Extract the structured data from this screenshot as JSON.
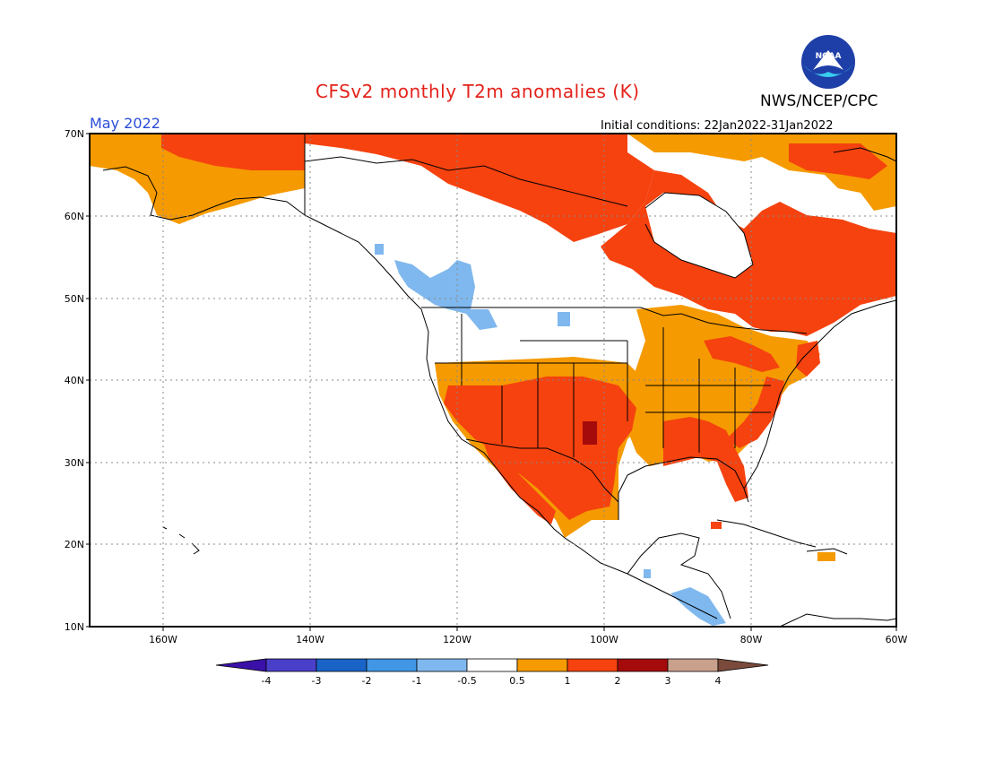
{
  "header": {
    "title": "CFSv2 monthly T2m anomalies (K)",
    "agency": "NWS/NCEP/CPC",
    "logo_text": "NOAA",
    "month": "May 2022",
    "initial_conditions": "Initial conditions: 22Jan2022-31Jan2022"
  },
  "map": {
    "region": "North America",
    "projection": "cylindrical equidistant",
    "lon_range": [
      -172,
      -60
    ],
    "lat_range": [
      10,
      70
    ],
    "lat_labels": [
      "70N",
      "60N",
      "50N",
      "40N",
      "30N",
      "20N",
      "10N"
    ],
    "lon_labels": [
      "160W",
      "140W",
      "120W",
      "100W",
      "80W",
      "60W"
    ],
    "grid": "dotted",
    "anomaly_regions": [
      {
        "area": "northern Alaska / Arctic coast",
        "category": "+0.5 to +1",
        "color": "#f59a00"
      },
      {
        "area": "northern Canada / Arctic",
        "category": "+1 to +2",
        "color": "#f5420f"
      },
      {
        "area": "Quebec / Labrador / eastern Canada",
        "category": "+1 to +2",
        "color": "#f5420f"
      },
      {
        "area": "US Southwest / southern Plains / Mexico",
        "category": "+1 to +2",
        "color": "#f5420f"
      },
      {
        "area": "Texas panhandle / Oklahoma",
        "category": "+2 to +3",
        "color": "#a50b0b"
      },
      {
        "area": "eastern US",
        "category": "+0.5 to +1",
        "color": "#f59a00"
      },
      {
        "area": "Florida / Gulf coast",
        "category": "+1 to +2",
        "color": "#f5420f"
      },
      {
        "area": "British Columbia / Pacific Northwest",
        "category": "-0.5 to -1",
        "color": "#7fb8ee"
      },
      {
        "area": "Central America",
        "category": "-0.5 to -1",
        "color": "#7fb8ee"
      }
    ]
  },
  "colorbar": {
    "ticks": [
      "-4",
      "-3",
      "-2",
      "-1",
      "-0.5",
      "0.5",
      "1",
      "2",
      "3",
      "4"
    ],
    "colors": [
      "#3b10a8",
      "#4a3fc9",
      "#1a64c8",
      "#4196e6",
      "#7fb8ee",
      "#ffffff",
      "#f59a00",
      "#f5420f",
      "#a50b0b",
      "#c8a08c",
      "#7a4a3c"
    ]
  }
}
